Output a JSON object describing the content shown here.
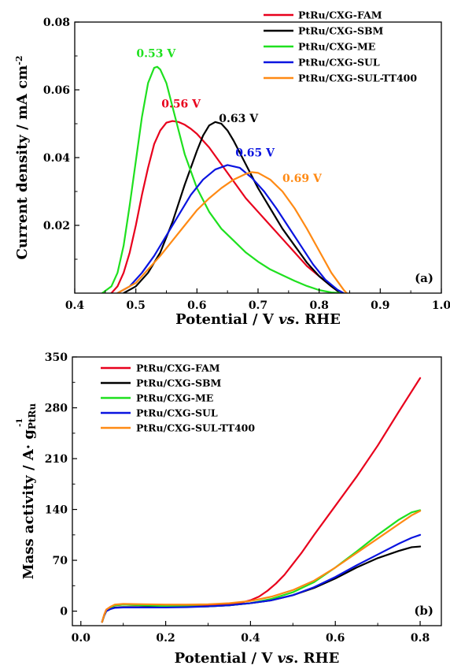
{
  "chart_data": [
    {
      "type": "line",
      "panel_label": "(a)",
      "xlabel": {
        "main": "Potential / V ",
        "italic": "vs",
        "tail": ". RHE"
      },
      "ylabel": {
        "main": "Current density / mA cm",
        "sup": "-2"
      },
      "xlim": [
        0.4,
        1.0
      ],
      "ylim": [
        0.0,
        0.08
      ],
      "xticks": [
        0.4,
        0.5,
        0.6,
        0.7,
        0.8,
        0.9,
        1.0
      ],
      "xtick_labels": [
        "0.4",
        "0.5",
        "0.6",
        "0.7",
        "0.8",
        "0.9",
        "1.0"
      ],
      "yticks": [
        0.02,
        0.04,
        0.06,
        0.08
      ],
      "ytick_labels": [
        "0.02",
        "0.04",
        "0.06",
        "0.08"
      ],
      "legend_position": "top-right",
      "series": [
        {
          "name": "PtRu/CXG-FAM",
          "color": "#e8001c",
          "x": [
            0.46,
            0.47,
            0.48,
            0.49,
            0.5,
            0.51,
            0.52,
            0.53,
            0.54,
            0.55,
            0.56,
            0.57,
            0.58,
            0.59,
            0.6,
            0.62,
            0.64,
            0.66,
            0.68,
            0.7,
            0.72,
            0.74,
            0.76,
            0.78,
            0.8,
            0.82,
            0.835
          ],
          "y": [
            0.0,
            0.002,
            0.006,
            0.012,
            0.02,
            0.029,
            0.037,
            0.044,
            0.048,
            0.0503,
            0.0508,
            0.0505,
            0.0497,
            0.0485,
            0.047,
            0.043,
            0.038,
            0.033,
            0.028,
            0.024,
            0.02,
            0.016,
            0.012,
            0.008,
            0.005,
            0.002,
            0.0
          ]
        },
        {
          "name": "PtRu/CXG-SBM",
          "color": "#000000",
          "x": [
            0.48,
            0.5,
            0.52,
            0.54,
            0.56,
            0.58,
            0.6,
            0.61,
            0.62,
            0.63,
            0.64,
            0.65,
            0.66,
            0.68,
            0.7,
            0.72,
            0.74,
            0.76,
            0.78,
            0.8,
            0.82,
            0.835
          ],
          "y": [
            0.0,
            0.002,
            0.006,
            0.012,
            0.021,
            0.032,
            0.042,
            0.0465,
            0.0495,
            0.0505,
            0.05,
            0.048,
            0.045,
            0.038,
            0.031,
            0.025,
            0.019,
            0.014,
            0.009,
            0.005,
            0.002,
            0.0
          ]
        },
        {
          "name": "PtRu/CXG-ME",
          "color": "#1fe01f",
          "x": [
            0.445,
            0.46,
            0.47,
            0.48,
            0.49,
            0.5,
            0.51,
            0.52,
            0.53,
            0.535,
            0.54,
            0.55,
            0.56,
            0.57,
            0.58,
            0.6,
            0.62,
            0.64,
            0.66,
            0.68,
            0.7,
            0.72,
            0.74,
            0.76,
            0.78,
            0.8,
            0.82,
            0.84
          ],
          "y": [
            0.0,
            0.002,
            0.006,
            0.014,
            0.026,
            0.039,
            0.052,
            0.062,
            0.0665,
            0.0668,
            0.066,
            0.062,
            0.055,
            0.048,
            0.041,
            0.031,
            0.024,
            0.019,
            0.0155,
            0.012,
            0.0093,
            0.007,
            0.0053,
            0.0036,
            0.0021,
            0.0009,
            0.0002,
            0.0
          ]
        },
        {
          "name": "PtRu/CXG-SUL",
          "color": "#0a14e0",
          "x": [
            0.47,
            0.49,
            0.51,
            0.53,
            0.55,
            0.57,
            0.59,
            0.61,
            0.63,
            0.65,
            0.67,
            0.69,
            0.71,
            0.73,
            0.75,
            0.77,
            0.79,
            0.81,
            0.83,
            0.84
          ],
          "y": [
            0.0,
            0.002,
            0.006,
            0.011,
            0.017,
            0.023,
            0.029,
            0.0335,
            0.0365,
            0.0378,
            0.037,
            0.034,
            0.03,
            0.025,
            0.0195,
            0.014,
            0.0085,
            0.004,
            0.001,
            0.0
          ]
        },
        {
          "name": "PtRu/CXG-SUL-TT400",
          "color": "#ff8a14",
          "x": [
            0.47,
            0.5,
            0.52,
            0.54,
            0.56,
            0.58,
            0.6,
            0.62,
            0.64,
            0.66,
            0.68,
            0.69,
            0.7,
            0.72,
            0.74,
            0.76,
            0.78,
            0.8,
            0.82,
            0.84,
            0.845
          ],
          "y": [
            0.0,
            0.003,
            0.007,
            0.011,
            0.0155,
            0.02,
            0.0245,
            0.028,
            0.031,
            0.0335,
            0.0352,
            0.0357,
            0.0355,
            0.0335,
            0.03,
            0.025,
            0.019,
            0.0125,
            0.006,
            0.001,
            0.0
          ]
        }
      ],
      "annotations": [
        {
          "text": "0.53 V",
          "x": 0.533,
          "y": 0.0697,
          "color": "#1fe01f"
        },
        {
          "text": "0.56 V",
          "x": 0.574,
          "y": 0.0548,
          "color": "#e8001c"
        },
        {
          "text": "0.63 V",
          "x": 0.668,
          "y": 0.0505,
          "color": "#000000"
        },
        {
          "text": "0.65 V",
          "x": 0.695,
          "y": 0.0403,
          "color": "#0a14e0"
        },
        {
          "text": "0.69 V",
          "x": 0.772,
          "y": 0.0328,
          "color": "#ff8a14"
        }
      ]
    },
    {
      "type": "line",
      "panel_label": "(b)",
      "xlabel": {
        "main": "Potential / V ",
        "italic": "vs",
        "tail": ". RHE"
      },
      "ylabel": {
        "main": "Mass activity / A· g",
        "sup": "-1",
        "sub": "PtRu"
      },
      "xlim": [
        -0.02,
        0.85
      ],
      "ylim": [
        -20,
        350
      ],
      "xticks": [
        0.0,
        0.2,
        0.4,
        0.6,
        0.8
      ],
      "xtick_labels": [
        "0.0",
        "0.2",
        "0.4",
        "0.6",
        "0.8"
      ],
      "yticks": [
        0,
        70,
        140,
        210,
        280,
        350
      ],
      "ytick_labels": [
        "0",
        "70",
        "140",
        "210",
        "280",
        "350"
      ],
      "legend_position": "top-left",
      "series": [
        {
          "name": "PtRu/CXG-FAM",
          "color": "#e8001c",
          "x": [
            0.05,
            0.055,
            0.06,
            0.07,
            0.08,
            0.1,
            0.15,
            0.2,
            0.25,
            0.3,
            0.35,
            0.38,
            0.4,
            0.42,
            0.44,
            0.46,
            0.48,
            0.5,
            0.52,
            0.55,
            0.6,
            0.65,
            0.7,
            0.75,
            0.8
          ],
          "y": [
            -15,
            -5,
            2,
            6,
            8,
            9,
            8,
            7.5,
            7.5,
            8,
            10,
            12,
            15,
            20,
            28,
            38,
            50,
            65,
            80,
            105,
            145,
            185,
            228,
            275,
            321
          ]
        },
        {
          "name": "PtRu/CXG-SBM",
          "color": "#000000",
          "x": [
            0.05,
            0.055,
            0.06,
            0.07,
            0.08,
            0.1,
            0.15,
            0.2,
            0.25,
            0.3,
            0.35,
            0.4,
            0.45,
            0.5,
            0.55,
            0.6,
            0.65,
            0.7,
            0.75,
            0.78,
            0.8
          ],
          "y": [
            -15,
            -6,
            0,
            3,
            5,
            5.5,
            5.5,
            5.5,
            6,
            6.5,
            8,
            11,
            15,
            22,
            32,
            45,
            60,
            73,
            83,
            88,
            89
          ]
        },
        {
          "name": "PtRu/CXG-ME",
          "color": "#1fe01f",
          "x": [
            0.05,
            0.055,
            0.06,
            0.07,
            0.08,
            0.1,
            0.15,
            0.2,
            0.25,
            0.3,
            0.35,
            0.4,
            0.45,
            0.5,
            0.55,
            0.6,
            0.65,
            0.7,
            0.75,
            0.78,
            0.8
          ],
          "y": [
            -15,
            -6,
            0,
            5,
            8,
            9,
            8,
            7,
            6.5,
            6.5,
            8,
            11,
            17,
            26,
            40,
            60,
            82,
            105,
            126,
            136,
            139
          ]
        },
        {
          "name": "PtRu/CXG-SUL",
          "color": "#0a14e0",
          "x": [
            0.05,
            0.055,
            0.06,
            0.07,
            0.08,
            0.1,
            0.15,
            0.2,
            0.25,
            0.3,
            0.35,
            0.4,
            0.45,
            0.5,
            0.55,
            0.6,
            0.65,
            0.7,
            0.75,
            0.78,
            0.8
          ],
          "y": [
            -15,
            -6,
            0,
            3,
            4.5,
            5,
            5,
            5,
            5.5,
            6.5,
            8,
            11,
            15,
            22,
            33,
            47,
            63,
            78,
            93,
            101,
            105
          ]
        },
        {
          "name": "PtRu/CXG-SUL-TT400",
          "color": "#ff8a14",
          "x": [
            0.05,
            0.055,
            0.06,
            0.07,
            0.08,
            0.1,
            0.15,
            0.2,
            0.25,
            0.3,
            0.35,
            0.4,
            0.45,
            0.5,
            0.55,
            0.6,
            0.65,
            0.7,
            0.75,
            0.78,
            0.8
          ],
          "y": [
            -15,
            -5,
            2,
            6,
            9,
            10,
            9.5,
            9,
            9,
            9.5,
            11,
            14,
            20,
            29,
            42,
            60,
            80,
            100,
            120,
            132,
            138
          ]
        }
      ],
      "annotations": []
    }
  ]
}
